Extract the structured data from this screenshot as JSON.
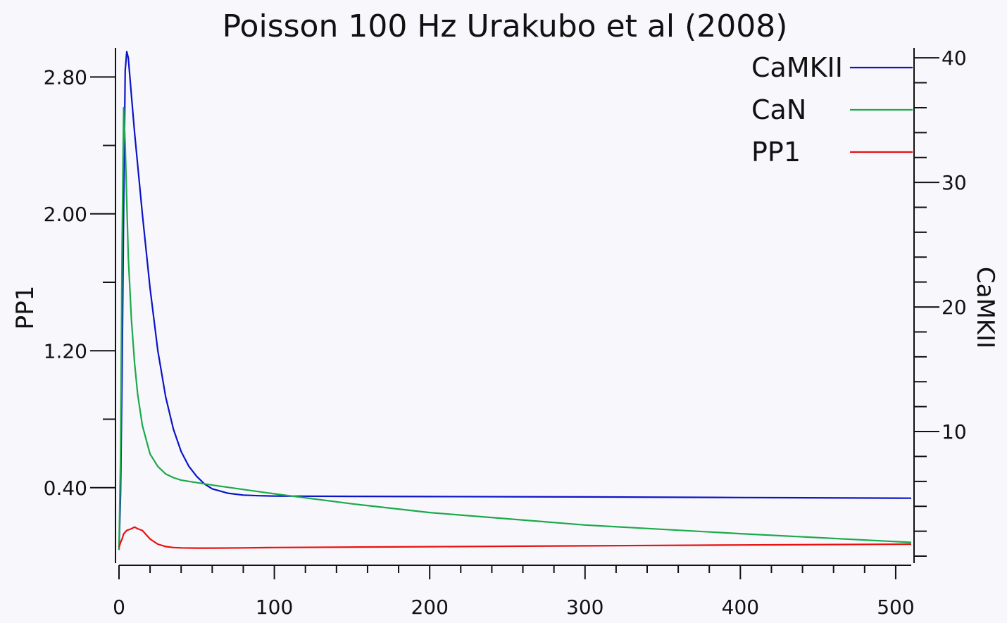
{
  "chart_data": {
    "type": "line",
    "title": "Poisson 100 Hz Urakubo et al (2008)",
    "xlabel": "",
    "y_left_label": "PP1",
    "y_right_label": "CaMKII",
    "xlim": [
      0,
      510
    ],
    "y_left_lim": [
      0.0,
      2.97
    ],
    "y_right_lim": [
      0,
      40.8
    ],
    "x_ticks": [
      0,
      100,
      200,
      300,
      400,
      500
    ],
    "x_tick_labels": [
      "0",
      "100",
      "200",
      "300",
      "400",
      "500"
    ],
    "y_left_ticks": [
      0.4,
      1.2,
      2.0,
      2.8
    ],
    "y_left_tick_labels": [
      "0.40",
      "1.20",
      "2.00",
      "2.80"
    ],
    "y_right_ticks": [
      10,
      20,
      30,
      40
    ],
    "y_right_tick_labels": [
      "10",
      "20",
      "30",
      "40"
    ],
    "legend_position": "top-right",
    "grid": false,
    "series": [
      {
        "name": "CaMKII",
        "color": "#0a14c8",
        "axis": "right",
        "x": [
          0,
          1,
          2,
          3,
          4,
          5,
          6,
          8,
          10,
          15,
          20,
          25,
          30,
          35,
          40,
          45,
          50,
          55,
          60,
          70,
          80,
          90,
          100,
          150,
          200,
          300,
          400,
          510
        ],
        "y": [
          0.5,
          5,
          15,
          28,
          39,
          40.5,
          40,
          37,
          34,
          27.5,
          21.5,
          16.5,
          12.8,
          10.2,
          8.4,
          7.2,
          6.4,
          5.8,
          5.4,
          5.05,
          4.9,
          4.85,
          4.82,
          4.8,
          4.78,
          4.75,
          4.7,
          4.65
        ]
      },
      {
        "name": "CaN",
        "color": "#1aaa4a",
        "axis": "right",
        "x": [
          0,
          1,
          2,
          3,
          4,
          5,
          6,
          8,
          10,
          12,
          15,
          20,
          25,
          30,
          35,
          40,
          50,
          60,
          80,
          100,
          150,
          200,
          300,
          400,
          510
        ],
        "y": [
          0.5,
          8,
          25,
          36,
          33,
          28.5,
          24,
          19,
          15.5,
          13,
          10.5,
          8.2,
          7.2,
          6.6,
          6.3,
          6.1,
          5.9,
          5.7,
          5.35,
          5.0,
          4.2,
          3.5,
          2.5,
          1.8,
          1.1
        ]
      },
      {
        "name": "PP1",
        "color": "#e81010",
        "axis": "left",
        "x": [
          0,
          1,
          2,
          3,
          5,
          8,
          10,
          12,
          15,
          18,
          20,
          25,
          30,
          35,
          40,
          50,
          60,
          80,
          100,
          200,
          300,
          400,
          510
        ],
        "y": [
          0.05,
          0.08,
          0.1,
          0.13,
          0.15,
          0.16,
          0.17,
          0.16,
          0.15,
          0.12,
          0.1,
          0.07,
          0.056,
          0.05,
          0.048,
          0.047,
          0.047,
          0.048,
          0.05,
          0.055,
          0.06,
          0.065,
          0.07
        ]
      }
    ]
  }
}
